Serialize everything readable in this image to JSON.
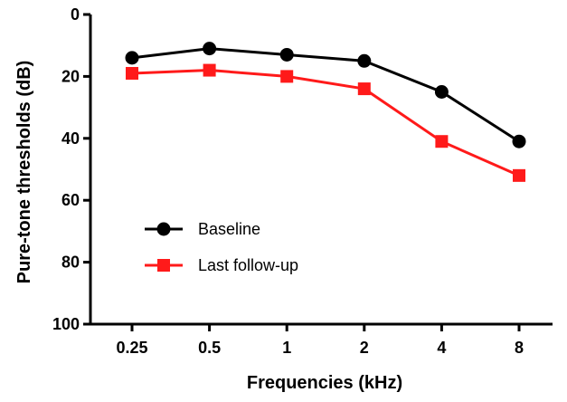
{
  "chart_data": {
    "type": "line",
    "title": "",
    "xlabel": "Frequencies (kHz)",
    "ylabel": "Pure-tone thresholds (dB)",
    "categories": [
      "0.25",
      "0.5",
      "1",
      "2",
      "4",
      "8"
    ],
    "ylim": [
      0,
      100
    ],
    "y_inverted": true,
    "yticks": [
      0,
      20,
      40,
      60,
      80,
      100
    ],
    "grid": false,
    "legend_position": "lower-left",
    "series": [
      {
        "name": "Baseline",
        "marker": "circle",
        "color": "#000000",
        "values": [
          14,
          11,
          13,
          15,
          25,
          41
        ]
      },
      {
        "name": "Last follow-up",
        "marker": "square",
        "color": "#ff1a1a",
        "values": [
          19,
          18,
          20,
          24,
          41,
          52
        ]
      }
    ]
  }
}
